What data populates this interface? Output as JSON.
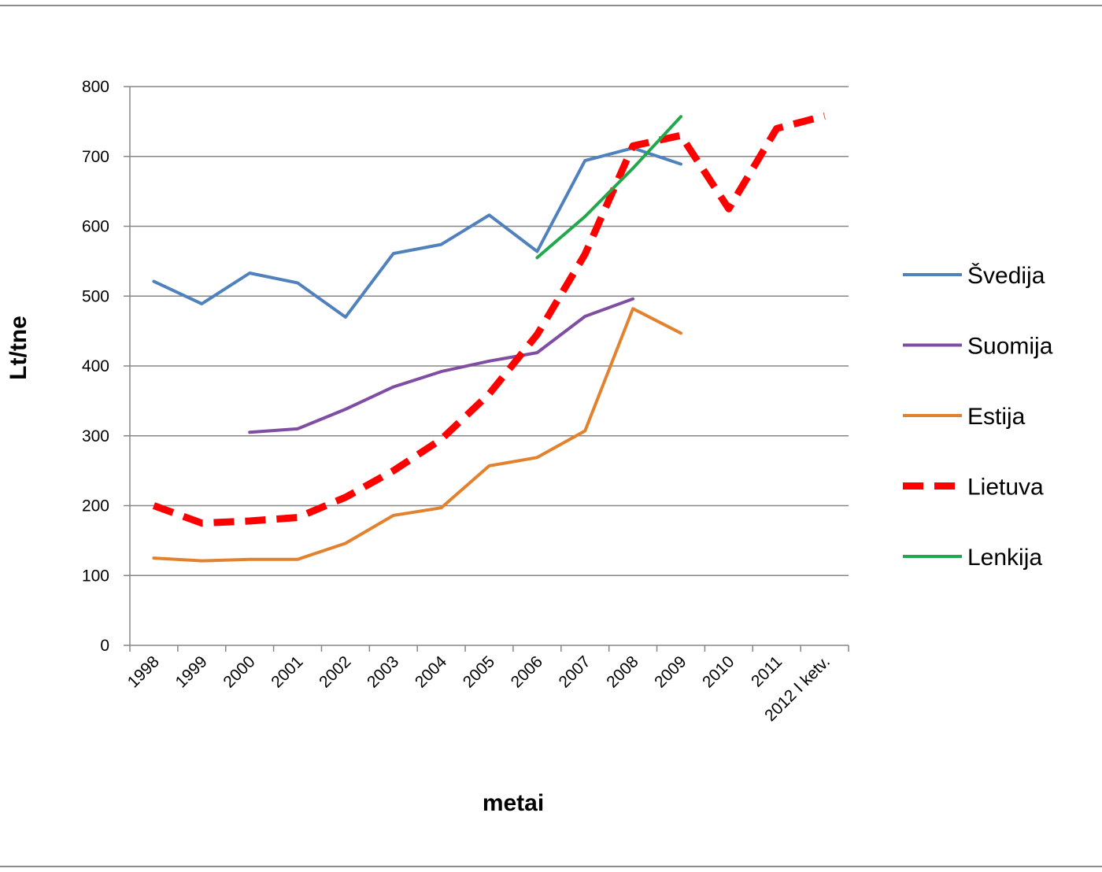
{
  "chart_data": {
    "type": "line",
    "categories": [
      "1998",
      "1999",
      "2000",
      "2001",
      "2002",
      "2003",
      "2004",
      "2005",
      "2006",
      "2007",
      "2008",
      "2009",
      "2010",
      "2011",
      "2012 I ketv."
    ],
    "xlabel": "metai",
    "ylabel": "Lt/tne",
    "ylim": [
      0,
      800
    ],
    "yticks": [
      0,
      100,
      200,
      300,
      400,
      500,
      600,
      700,
      800
    ],
    "grid": true,
    "legend_position": "right",
    "series": [
      {
        "name": "Švedija",
        "color": "#4f81bd",
        "dashed": false,
        "values": [
          521,
          489,
          533,
          519,
          470,
          561,
          574,
          616,
          564,
          694,
          712,
          689,
          null,
          null,
          null
        ]
      },
      {
        "name": "Suomija",
        "color": "#7f4ea3",
        "dashed": false,
        "values": [
          null,
          null,
          305,
          310,
          338,
          370,
          392,
          407,
          419,
          471,
          496,
          null,
          null,
          null,
          null
        ]
      },
      {
        "name": "Estija",
        "color": "#e2822e",
        "dashed": false,
        "values": [
          125,
          121,
          123,
          123,
          146,
          186,
          197,
          257,
          269,
          307,
          482,
          447,
          null,
          null,
          null
        ]
      },
      {
        "name": "Lietuva",
        "color": "#ff0000",
        "dashed": true,
        "values": [
          200,
          175,
          178,
          183,
          212,
          250,
          295,
          360,
          445,
          560,
          715,
          730,
          625,
          740,
          758
        ]
      },
      {
        "name": "Lenkija",
        "color": "#22a84b",
        "dashed": false,
        "values": [
          null,
          null,
          null,
          null,
          null,
          null,
          null,
          null,
          555,
          614,
          683,
          757,
          null,
          null,
          null
        ]
      }
    ]
  }
}
